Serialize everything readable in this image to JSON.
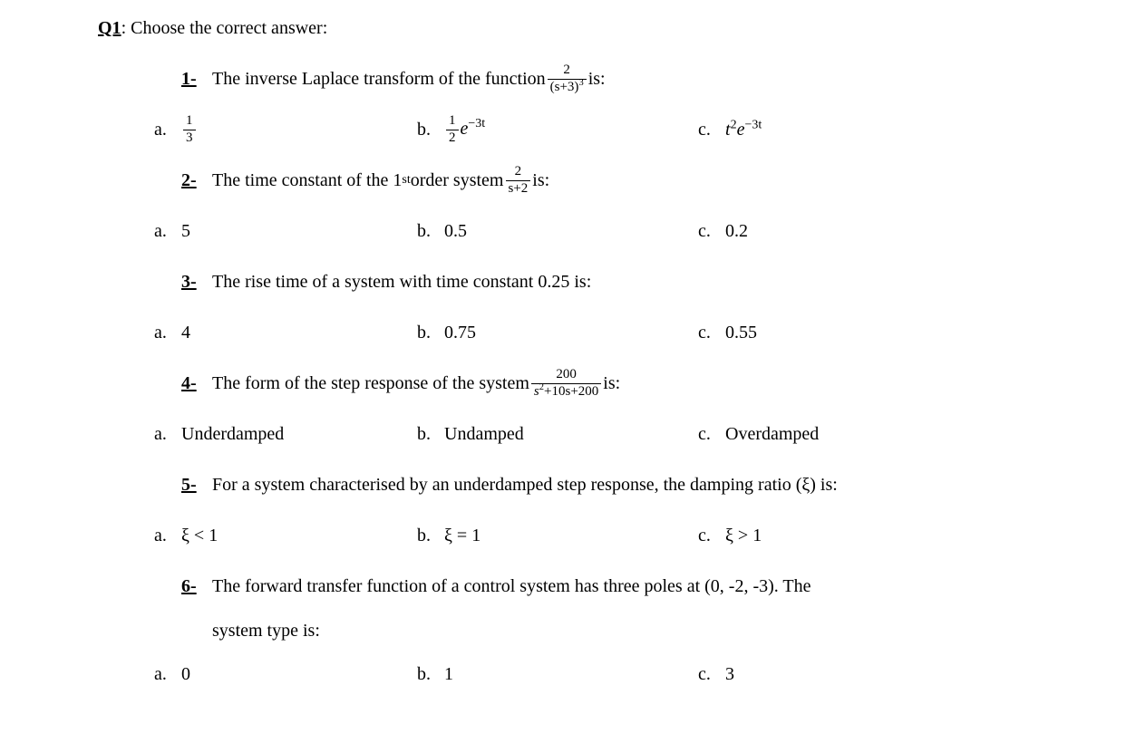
{
  "heading": {
    "label": "Q1",
    "text": ": Choose the correct answer:"
  },
  "q1": {
    "num": "1-",
    "stem_a": "The inverse Laplace transform of the function ",
    "frac_num": "2",
    "frac_den_a": "(s+3)",
    "frac_den_exp": "3",
    "stem_b": " is:",
    "opt_a_frac_num": "1",
    "opt_a_frac_den": "3",
    "opt_b_frac_num": "1",
    "opt_b_frac_den": "2",
    "opt_b_e": "e",
    "opt_b_exp": "−3t",
    "opt_c_t": "t",
    "opt_c_t_exp": "2",
    "opt_c_e": "e",
    "opt_c_e_exp": "−3t"
  },
  "q2": {
    "num": "2-",
    "stem_a": "The time constant of the 1",
    "stem_sup": "st",
    "stem_b": " order system ",
    "frac_num": "2",
    "frac_den": "s+2",
    "stem_c": " is:",
    "opt_a": "5",
    "opt_b": "0.5",
    "opt_c": "0.2"
  },
  "q3": {
    "num": "3-",
    "stem": "The rise time of a system with time constant 0.25 is:",
    "opt_a": "4",
    "opt_b": "0.75",
    "opt_c": "0.55"
  },
  "q4": {
    "num": "4-",
    "stem_a": "The form of the step response of the system ",
    "frac_num": "200",
    "frac_den_a": "s",
    "frac_den_exp": "2",
    "frac_den_b": "+10s+200",
    "stem_b": " is:",
    "opt_a": "Underdamped",
    "opt_b": "Undamped",
    "opt_c": "Overdamped"
  },
  "q5": {
    "num": "5-",
    "stem": "For a system characterised by an underdamped step response, the damping ratio (ξ) is:",
    "opt_a": "ξ < 1",
    "opt_b": "ξ = 1",
    "opt_c": "ξ > 1"
  },
  "q6": {
    "num": "6-",
    "stem": "The forward transfer function of a control system has three poles at (0, -2, -3). The",
    "stem2": "system type is:",
    "opt_a": "0",
    "opt_b": "1",
    "opt_c": "3"
  },
  "letters": {
    "a": "a.",
    "b": "b.",
    "c": "c."
  }
}
